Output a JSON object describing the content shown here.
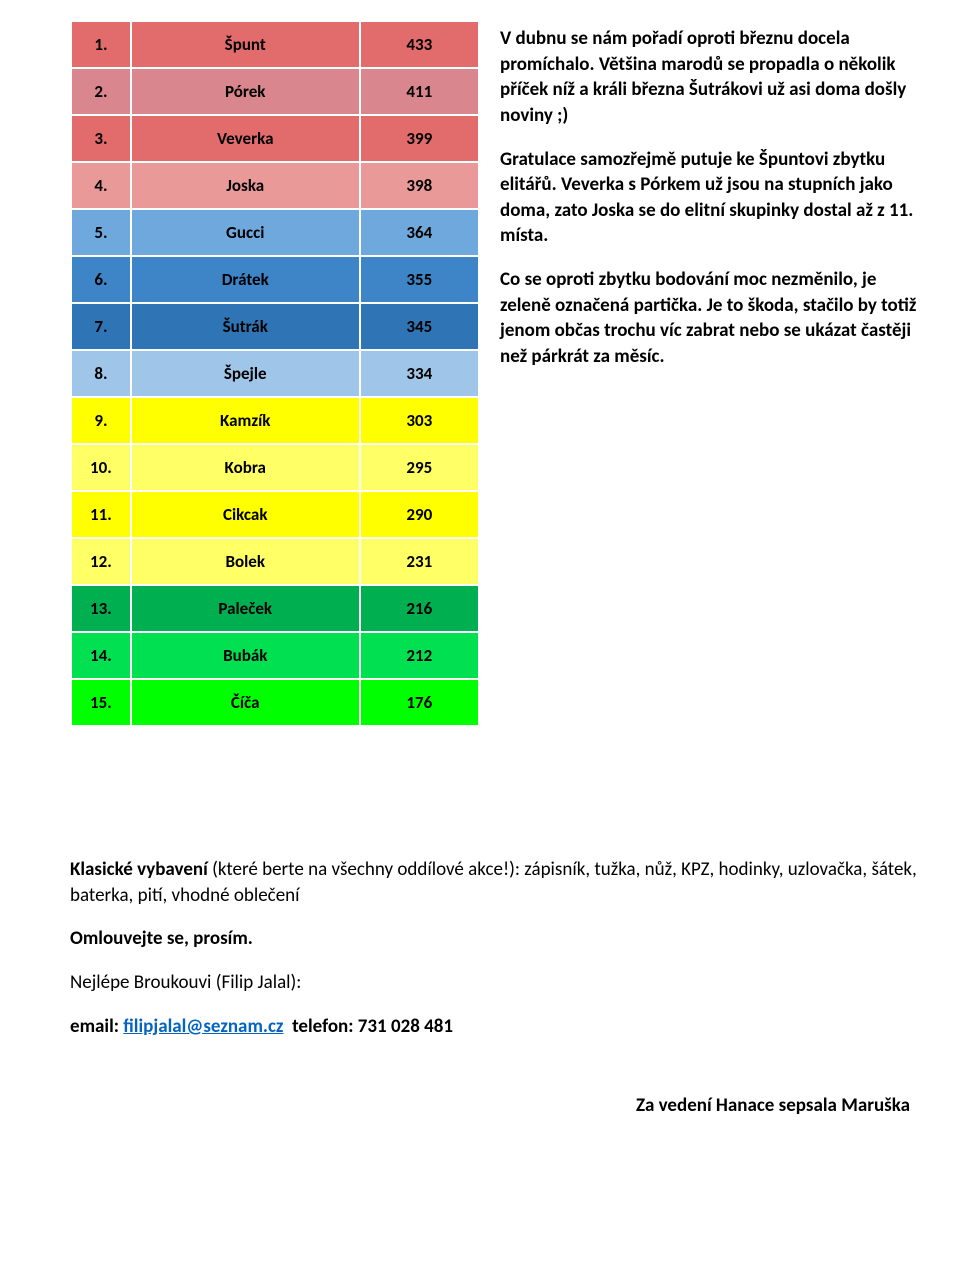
{
  "colors": {
    "red1": "#e26b6b",
    "red2": "#d9868e",
    "red3": "#ea9999",
    "blue1": "#6fa8dc",
    "blue2": "#3d85c6",
    "blue3": "#2f75b5",
    "blue4": "#9fc5e8",
    "yellow1": "#ffff00",
    "yellow2": "#ffff66",
    "green1": "#00b050",
    "green2": "#00e050",
    "green3": "#00ff00"
  },
  "rows": [
    {
      "rank": "1.",
      "name": "Špunt",
      "score": "433",
      "bg": "#e26b6b"
    },
    {
      "rank": "2.",
      "name": "Pórek",
      "score": "411",
      "bg": "#d9868e"
    },
    {
      "rank": "3.",
      "name": "Veverka",
      "score": "399",
      "bg": "#e26b6b"
    },
    {
      "rank": "4.",
      "name": "Joska",
      "score": "398",
      "bg": "#ea9999"
    },
    {
      "rank": "5.",
      "name": "Gucci",
      "score": "364",
      "bg": "#6fa8dc"
    },
    {
      "rank": "6.",
      "name": "Drátek",
      "score": "355",
      "bg": "#3d85c6"
    },
    {
      "rank": "7.",
      "name": "Šutrák",
      "score": "345",
      "bg": "#2f75b5"
    },
    {
      "rank": "8.",
      "name": "Špejle",
      "score": "334",
      "bg": "#9fc5e8"
    },
    {
      "rank": "9.",
      "name": "Kamzík",
      "score": "303",
      "bg": "#ffff00"
    },
    {
      "rank": "10.",
      "name": "Kobra",
      "score": "295",
      "bg": "#ffff66"
    },
    {
      "rank": "11.",
      "name": "Cikcak",
      "score": "290",
      "bg": "#ffff00"
    },
    {
      "rank": "12.",
      "name": "Bolek",
      "score": "231",
      "bg": "#ffff66"
    },
    {
      "rank": "13.",
      "name": "Paleček",
      "score": "216",
      "bg": "#00b050"
    },
    {
      "rank": "14.",
      "name": "Bubák",
      "score": "212",
      "bg": "#00e050"
    },
    {
      "rank": "15.",
      "name": "Číča",
      "score": "176",
      "bg": "#00ff00"
    }
  ],
  "para1": "V dubnu se nám pořadí oproti březnu docela promíchalo. Většina marodů se propadla o několik příček níž a králi března Šutrákovi už asi doma došly noviny ;)",
  "para2": "Gratulace samozřejmě putuje ke Špuntovi zbytku elitářů. Veverka s Pórkem už jsou na stupních jako doma, zato Joska se do elitní skupinky dostal až z 11. místa.",
  "para3": "Co se oproti zbytku bodování moc nezměnilo, je zeleně označená partička. Je to škoda, stačilo by totiž jenom občas trochu víc zabrat nebo se ukázat častěji než párkrát za měsíc.",
  "equip_lead": "Klasické vybavení",
  "equip_rest": " (které berte na všechny oddílové akce!): zápisník, tužka, nůž, KPZ, hodinky, uzlovačka, šátek, baterka, pití, vhodné oblečení",
  "apology": "Omlouvejte se, prosím.",
  "contact_line": "Nejlépe Broukouvi (Filip Jalal):",
  "email_label": "email",
  "email_value": "filipjalal@seznam.cz",
  "phone_label": "telefon:",
  "phone_value": "731 028 481",
  "signature": "Za vedení Hanace sepsala Maruška"
}
